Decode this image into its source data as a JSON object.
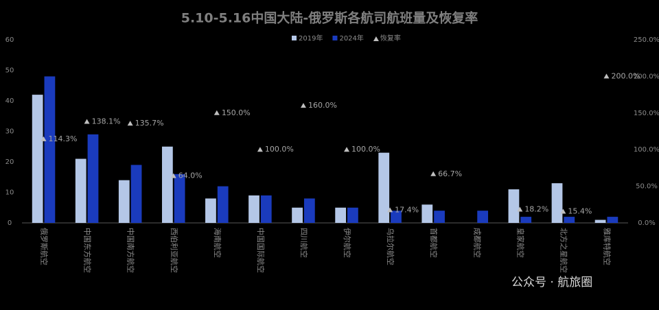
{
  "chart_data": {
    "type": "bar",
    "title": "5.10-5.16中国大陆-俄罗斯各航司航班量及恢复率",
    "categories": [
      "俄罗斯航空",
      "中国东方航空",
      "中国南方航空",
      "西伯利亚航空",
      "海南航空",
      "中国国际航空",
      "四川航空",
      "伊尔航空",
      "乌拉尔航空",
      "首都航空",
      "成都航空",
      "皇家航空",
      "北方之星航空",
      "雅库特航空"
    ],
    "series": [
      {
        "name": "2019年",
        "color": "#b4c7e7",
        "values": [
          42,
          21,
          14,
          25,
          8,
          9,
          5,
          5,
          23,
          6,
          null,
          11,
          13,
          1
        ]
      },
      {
        "name": "2024年",
        "color": "#1a3bbd",
        "values": [
          48,
          29,
          19,
          16,
          12,
          9,
          8,
          5,
          4,
          4,
          4,
          2,
          2,
          2
        ]
      },
      {
        "name": "恢复率",
        "color": "#bfbfbf",
        "axis": "y2",
        "type": "scatter",
        "values": [
          114.3,
          138.1,
          135.7,
          64.0,
          150.0,
          100.0,
          160.0,
          100.0,
          17.4,
          66.7,
          null,
          18.2,
          15.4,
          200.0
        ],
        "value_labels": [
          "114.3%",
          "138.1%",
          "135.7%",
          "64.0%",
          "150.0%",
          "100.0%",
          "160.0%",
          "100.0%",
          "17.4%",
          "66.7%",
          null,
          "18.2%",
          "15.4%",
          "200.0%"
        ]
      }
    ],
    "ylim": [
      0,
      60
    ],
    "yticks": [
      0,
      10,
      20,
      30,
      40,
      50,
      60
    ],
    "y2lim": [
      0,
      250
    ],
    "y2ticks": [
      {
        "value": 0,
        "label": "0.0%"
      },
      {
        "value": 50,
        "label": "50.0%"
      },
      {
        "value": 100,
        "label": "100.0%"
      },
      {
        "value": 150,
        "label": "150.0%"
      },
      {
        "value": 200,
        "label": "200.0%"
      },
      {
        "value": 250,
        "label": "250.0%"
      }
    ],
    "legend": "top",
    "watermark": "公众号 · 航旅圈"
  }
}
